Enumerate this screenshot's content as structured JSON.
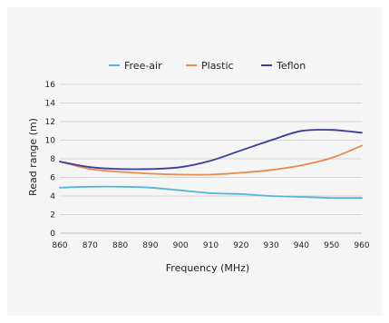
{
  "chart_data": {
    "type": "line",
    "title": "",
    "xlabel": "Frequency (MHz)",
    "ylabel": "Read range (m)",
    "xlim": [
      860,
      960
    ],
    "ylim": [
      0,
      16
    ],
    "x_ticks": [
      860,
      870,
      880,
      890,
      900,
      910,
      920,
      930,
      940,
      950,
      960
    ],
    "y_ticks": [
      0,
      2,
      4,
      6,
      8,
      10,
      12,
      14,
      16
    ],
    "grid": "horizontal",
    "legend_position": "top",
    "x": [
      860,
      870,
      880,
      890,
      900,
      910,
      920,
      930,
      940,
      950,
      960
    ],
    "series": [
      {
        "name": "Free-air",
        "color": "#52b5d9",
        "values": [
          4.9,
          5.0,
          5.0,
          4.9,
          4.6,
          4.3,
          4.2,
          4.0,
          3.9,
          3.8,
          3.8
        ]
      },
      {
        "name": "Plastic",
        "color": "#e8894e",
        "values": [
          7.7,
          6.9,
          6.6,
          6.4,
          6.3,
          6.3,
          6.5,
          6.8,
          7.3,
          8.1,
          9.4
        ]
      },
      {
        "name": "Teflon",
        "color": "#3c3c9e",
        "values": [
          7.7,
          7.1,
          6.9,
          6.9,
          7.1,
          7.8,
          8.9,
          10.0,
          11.0,
          11.1,
          10.8
        ]
      }
    ]
  }
}
